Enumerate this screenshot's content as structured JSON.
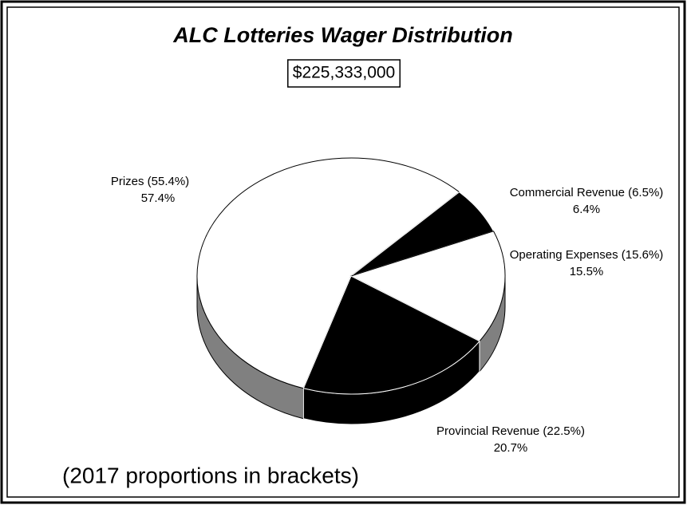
{
  "chart_data": {
    "type": "pie3d",
    "title": "ALC Lotteries Wager Distribution",
    "subtitle": "$225,333,000",
    "annotation": "(2017 proportions in brackets)",
    "categories": [
      "Prizes (55.4%)",
      "Commercial Revenue (6.5%)",
      "Operating Expenses (15.6%)",
      "Provincial Revenue (22.5%)"
    ],
    "values": [
      57.4,
      6.4,
      15.5,
      20.7
    ],
    "value_labels": [
      "57.4%",
      "6.4%",
      "15.5%",
      "20.7%"
    ],
    "colors": [
      "#ffffff",
      "#000000",
      "#ffffff",
      "#000000"
    ],
    "side_colors": [
      "#808080",
      "#000000",
      "#808080",
      "#000000"
    ]
  }
}
